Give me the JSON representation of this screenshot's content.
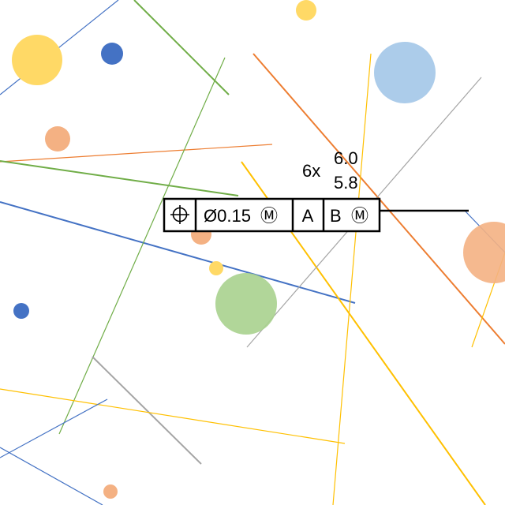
{
  "colors": {
    "blue": "#4472c4",
    "green": "#70ad47",
    "orange": "#ed7d31",
    "yellow": "#ffc000",
    "gray": "#a5a5a5",
    "light_blue": "#9dc3e6",
    "light_orange": "#f4b183",
    "light_yellow": "#ffd966",
    "light_green": "#a9d18e",
    "black": "#000000"
  },
  "dimension": {
    "count": "6x",
    "upper_limit": "6.0",
    "lower_limit": "5.8"
  },
  "feature_control_frame": {
    "characteristic_icon": "position-icon",
    "tolerance": "Ø0.15",
    "tolerance_modifier": "Ⓜ",
    "datum_primary": "A",
    "datum_secondary": "B",
    "datum_secondary_modifier": "Ⓜ"
  }
}
